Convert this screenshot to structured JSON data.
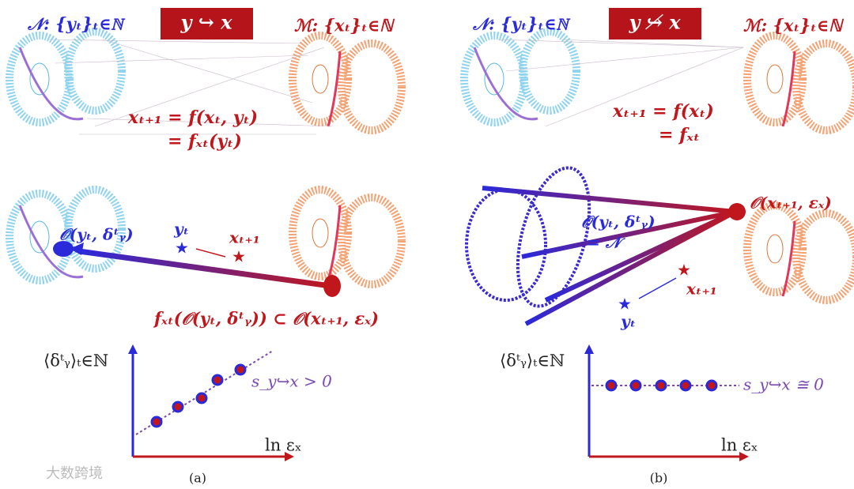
{
  "panels": [
    {
      "label": "(a)",
      "badge": "y ↪ x",
      "manifold_n": "𝒩: {yₜ}ₜ∈ℕ",
      "manifold_m": "ℳ: {xₜ}ₜ∈ℕ",
      "eq_line1": "xₜ₊₁ = f(xₜ, yₜ)",
      "eq_line2": "= fₓₜ(yₜ)",
      "neighborhood_y": "𝒪(yₜ, δᵗᵧ)",
      "y_point": "yₜ",
      "x_point": "xₜ₊₁",
      "mapping": "fₓₜ(𝒪(yₜ, δᵗᵧ)) ⊂ 𝒪(xₜ₊₁, εₓ)",
      "axis_y_label": "⟨δᵗᵧ⟩ₜ∈ℕ",
      "slope_label": "s_y↪x > 0",
      "axis_x_label": "ln εₓ"
    },
    {
      "label": "(b)",
      "badge": "y ↪̸ x",
      "manifold_n": "𝒩: {yₜ}ₜ∈ℕ",
      "manifold_m": "ℳ: {xₜ}ₜ∈ℕ",
      "eq_line1": "xₜ₊₁ = f(xₜ)",
      "eq_line2": "= fₓₜ",
      "neighborhood_x": "𝒪(xₜ₊₁, εₓ)",
      "neighborhood_y": "𝒪(yₜ, δᵗᵧ)",
      "neighborhood_y_eq": "= 𝒩",
      "y_point": "yₜ",
      "x_point": "xₜ₊₁",
      "axis_y_label": "⟨δᵗᵧ⟩ₜ∈ℕ",
      "slope_label": "s_y↪x ≅ 0",
      "axis_x_label": "ln εₓ"
    }
  ],
  "watermark": "大数跨境"
}
